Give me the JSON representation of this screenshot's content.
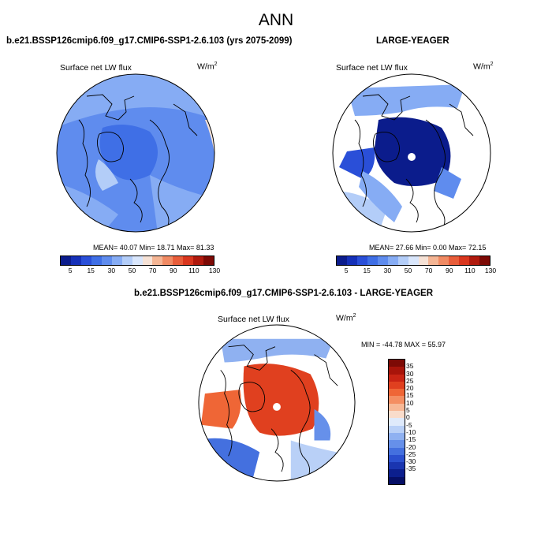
{
  "title": "ANN",
  "panels": {
    "left": {
      "title": "b.e21.BSSP126cmip6.f09_g17.CMIP6-SSP1-2.6.103 (yrs 2075-2099)",
      "variable": "Surface net LW flux",
      "units_base": "W/m",
      "units_exp": "2",
      "stats": "MEAN=  40.07  Min=  18.71  Max=  81.33"
    },
    "right": {
      "title": "LARGE-YEAGER",
      "variable": "Surface net LW flux",
      "units_base": "W/m",
      "units_exp": "2",
      "stats": "MEAN=  27.66  Min=   0.00  Max=  72.15"
    },
    "diff": {
      "title": "b.e21.BSSP126cmip6.f09_g17.CMIP6-SSP1-2.6.103 - LARGE-YEAGER",
      "variable": "Surface net LW flux",
      "units_base": "W/m",
      "units_exp": "2",
      "stats": "MIN = -44.78 MAX =  55.97"
    }
  },
  "colorbar_abs": {
    "colors": [
      "#0b1c8c",
      "#1530b8",
      "#2a4fd8",
      "#3f6fe6",
      "#5f8cee",
      "#86acf4",
      "#b3cdf8",
      "#d9e6fb",
      "#f6e2d6",
      "#f4b594",
      "#f08a63",
      "#e85d3a",
      "#d9361e",
      "#b01a0e",
      "#7d0a05"
    ],
    "labels": [
      "5",
      "15",
      "30",
      "50",
      "70",
      "90",
      "110",
      "130"
    ]
  },
  "colorbar_diff": {
    "colors": [
      "#7d0a05",
      "#a8140a",
      "#c92414",
      "#e0401f",
      "#ef6636",
      "#f48e62",
      "#f7b896",
      "#f9dccb",
      "#dfeafb",
      "#b9d0f7",
      "#8fb1f1",
      "#6690ea",
      "#4470df",
      "#2b50cf",
      "#1a35b0",
      "#0c1f8e",
      "#060f66"
    ],
    "labels": [
      "35",
      "30",
      "25",
      "20",
      "15",
      "10",
      "5",
      "0",
      "-5",
      "-10",
      "-15",
      "-20",
      "-25",
      "-30",
      "-35"
    ]
  }
}
